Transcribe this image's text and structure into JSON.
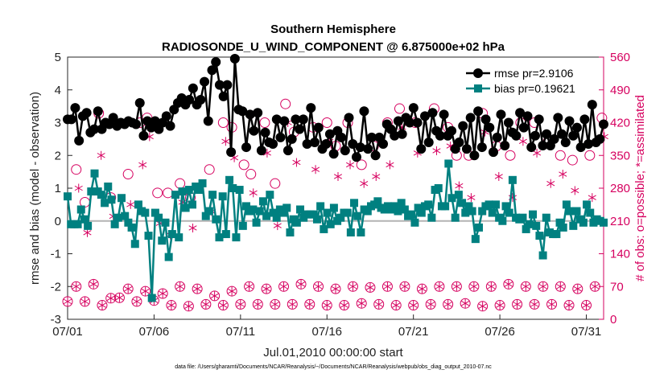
{
  "chart_data": {
    "type": "line",
    "title": "Southern Hemisphere",
    "subtitle": "RADIOSONDE_U_WIND_COMPONENT @ 6.875000e+02 hPa",
    "xlabel": "Jul.01,2010 00:00:00 start",
    "ylabel_left": "rmse and bias (model - observation)",
    "ylabel_right": "# of obs: o=possible; *=assimilated",
    "footer": "data file: /Users/gharamti/Documents/NCAR/Reanalysis/~/Documents/NCAR/Reanalysis/webpub/obs_diag_output_2010-07.nc",
    "x_ticks": [
      "07/01",
      "07/06",
      "07/11",
      "07/16",
      "07/21",
      "07/26",
      "07/31"
    ],
    "x_tick_days": [
      1,
      6,
      11,
      16,
      21,
      26,
      31
    ],
    "xlim": [
      1.0,
      32.0
    ],
    "ylim_left": [
      -3,
      5
    ],
    "yticks_left": [
      "-3",
      "-2",
      "-1",
      "0",
      "1",
      "2",
      "3",
      "4",
      "5"
    ],
    "ylim_right": [
      0,
      560
    ],
    "yticks_right": [
      "0",
      "70",
      "140",
      "210",
      "280",
      "350",
      "420",
      "490",
      "560"
    ],
    "zero_line": 0,
    "colors": {
      "rmse": "#000000",
      "bias": "#008080",
      "obs": "#d6005f",
      "zero": "#b3b3b3"
    },
    "series": [
      {
        "name": "rmse pr=2.9106",
        "axis": "left",
        "values": [
          3.1,
          3.1,
          3.45,
          2.45,
          3.2,
          3.3,
          2.7,
          2.8,
          3.35,
          2.8,
          3.0,
          2.95,
          3.15,
          2.9,
          3.0,
          2.95,
          3.05,
          3.0,
          2.95,
          3.6,
          2.6,
          3.05,
          2.85,
          3.05,
          2.8,
          3.0,
          3.2,
          2.9,
          3.4,
          3.6,
          3.75,
          3.55,
          3.7,
          4.05,
          3.55,
          3.7,
          4.25,
          3.05,
          4.6,
          4.85,
          4.15,
          3.8,
          4.15,
          2.1,
          4.95,
          3.4,
          3.35,
          2.25,
          3.25,
          2.75,
          3.3,
          2.15,
          2.7,
          2.4,
          2.35,
          3.1,
          2.55,
          3.05,
          2.15,
          2.5,
          3.1,
          2.8,
          3.1,
          2.35,
          3.45,
          2.4,
          2.85,
          2.2,
          2.35,
          2.65,
          2.05,
          2.75,
          2.55,
          2.15,
          3.15,
          2.35,
          1.95,
          2.25,
          3.35,
          2.2,
          2.55,
          2.0,
          2.55,
          2.35,
          2.95,
          2.8,
          2.6,
          3.05,
          2.65,
          3.15,
          3.0,
          3.45,
          3.0,
          2.2,
          3.2,
          2.4,
          3.3,
          2.75,
          2.6,
          3.25,
          2.6,
          2.75,
          2.2,
          2.4,
          2.9,
          2.2,
          3.15,
          2.0,
          3.35,
          2.25,
          3.1,
          2.85,
          2.1,
          2.55,
          3.25,
          2.3,
          3.0,
          2.7,
          2.6,
          3.3,
          2.85,
          3.2,
          2.25,
          2.6,
          3.1,
          2.3,
          2.65,
          2.3,
          2.5,
          3.15,
          2.65,
          2.4,
          3.05,
          2.6,
          2.85,
          2.25,
          3.1,
          2.35,
          3.55,
          2.4,
          2.5,
          2.95
        ],
        "marker": "filled-circle"
      },
      {
        "name": "bias pr=0.19621",
        "axis": "left",
        "values": [
          0.75,
          -0.1,
          -0.1,
          -0.1,
          0.35,
          0.05,
          -0.15,
          0.9,
          1.45,
          0.9,
          0.8,
          0.55,
          1.05,
          0.65,
          -0.1,
          0.1,
          0.7,
          0.15,
          -0.05,
          -0.2,
          -0.7,
          0.5,
          0.3,
          0.25,
          -0.45,
          -2.35,
          0.25,
          0.1,
          -0.6,
          -0.05,
          -1.1,
          -0.4,
          0.8,
          -0.5,
          0.9,
          0.4,
          0.95,
          0.5,
          1.05,
          0.95,
          1.15,
          0.15,
          0.3,
          0.8,
          0.05,
          -0.5,
          0.75,
          -0.4,
          1.25,
          1.0,
          -0.5,
          0.95,
          -0.15,
          0.45,
          0.3,
          0.35,
          -0.05,
          0.3,
          0.6,
          0.15,
          0.8,
          0.25,
          0.1,
          0.35,
          0.25,
          0.4,
          -0.35,
          0.05,
          -0.05,
          0.35,
          0.1,
          0.2,
          0.2,
          0.2,
          0.05,
          0.45,
          -0.25,
          0.25,
          -0.1,
          0.4,
          0.0,
          0.1,
          0.25,
          0.25,
          -0.35,
          0.55,
          0.15,
          -0.35,
          0.35,
          0.3,
          0.45,
          0.5,
          0.6,
          0.4,
          0.35,
          0.45,
          0.35,
          0.45,
          0.3,
          0.55,
          0.35,
          0.15,
          0.2,
          -0.05,
          0.4,
          0.25,
          0.45,
          0.5,
          0.1,
          0.95,
          1.0,
          0.45,
          0.45,
          1.75,
          0.7,
          0.1,
          0.8,
          0.55,
          0.25,
          0.45,
          0.3,
          -0.55,
          -0.2,
          0.3,
          0.45,
          0.5,
          0.25,
          0.5,
          0.1,
          0.0,
          0.45,
          0.25,
          1.25,
          0.1,
          0.05,
          0.1,
          -0.25,
          -0.1,
          0.2,
          -0.15,
          -0.45,
          -1.05,
          0.1,
          -0.35,
          -0.4,
          -0.4,
          -0.05,
          -0.2,
          0.5,
          0.3,
          -0.15,
          0.3,
          0.05,
          -0.05,
          0.5,
          0.25,
          -0.05,
          0.05,
          0.0,
          -0.05
        ],
        "marker": "filled-square"
      },
      {
        "name": "# of obs possible",
        "axis": "right",
        "marker": "open-circle",
        "day_dates": [
          1,
          2,
          3,
          4,
          5,
          6,
          7,
          8,
          9,
          10,
          11,
          12,
          13,
          14,
          15,
          16,
          17,
          18,
          19,
          20,
          21,
          22,
          23,
          24,
          25,
          26,
          27,
          28,
          29,
          30,
          31,
          32
        ],
        "x00": [
          38,
          38,
          30,
          46,
          38,
          40,
          30,
          28,
          32,
          30,
          32,
          32,
          32,
          32,
          32,
          30,
          30,
          34,
          32,
          30,
          30,
          32,
          32,
          34,
          28,
          30,
          32,
          32,
          32,
          30,
          30,
          30
        ],
        "x12": [
          70,
          75,
          45,
          65,
          60,
          55,
          70,
          65,
          50,
          60,
          70,
          65,
          70,
          75,
          70,
          65,
          70,
          68,
          70,
          70,
          65,
          70,
          70,
          70,
          70,
          75,
          70,
          70,
          70,
          65,
          70,
          70
        ],
        "spikes_x": [
          1.5,
          2.0,
          2.8,
          3.5,
          4.5,
          5.2,
          5.6,
          6.2,
          6.8,
          7.5,
          8.1,
          9.2,
          10.0,
          10.5,
          11.2,
          11.6,
          12.4,
          13.0,
          13.6,
          14.1,
          15.2,
          16.0,
          16.5,
          17.2,
          18.0,
          18.7,
          19.5,
          20.2,
          21.1,
          22.2,
          23.0,
          23.5,
          24.2,
          25.0,
          25.8,
          26.6,
          27.2,
          28.0,
          28.8,
          29.5,
          30.2,
          31.2,
          31.9
        ],
        "spikes_y": [
          320,
          250,
          440,
          260,
          310,
          420,
          430,
          270,
          270,
          290,
          260,
          320,
          420,
          410,
          330,
          310,
          420,
          290,
          460,
          400,
          410,
          420,
          370,
          420,
          330,
          370,
          420,
          450,
          420,
          450,
          410,
          350,
          350,
          440,
          370,
          350,
          420,
          420,
          380,
          350,
          340,
          350,
          430
        ]
      },
      {
        "name": "# of obs assimilated",
        "axis": "right",
        "marker": "asterisk"
      }
    ],
    "legend": {
      "placement": "top-right",
      "entries": [
        "rmse pr=2.9106",
        "bias pr=0.19621"
      ]
    }
  }
}
